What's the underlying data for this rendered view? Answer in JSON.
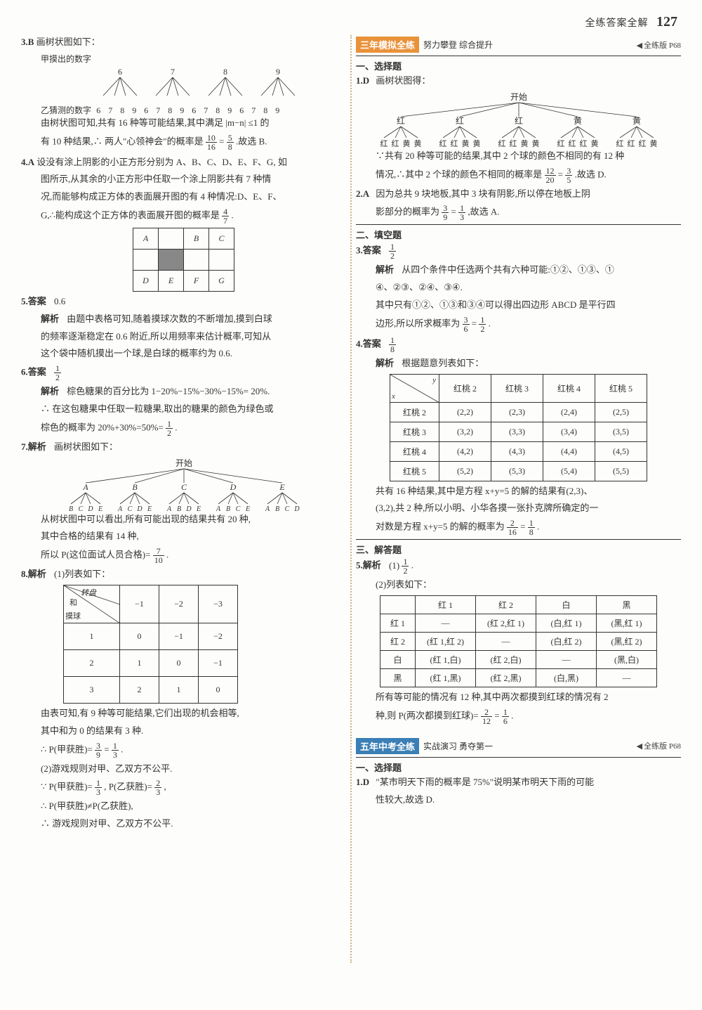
{
  "page_header": {
    "label": "全练答案全解",
    "number": "127"
  },
  "left": {
    "q3": {
      "num": "3.B",
      "lead": "画树状图如下：",
      "top_label": "甲摸出的数字",
      "tops": [
        "6",
        "7",
        "8",
        "9"
      ],
      "bottom_label": "乙猜测的数字",
      "leaves": [
        "6",
        "7",
        "8",
        "9",
        "6",
        "7",
        "8",
        "9",
        "6",
        "7",
        "8",
        "9",
        "6",
        "7",
        "8",
        "9"
      ],
      "line1": "由树状图可知,共有 16 种等可能结果,其中满足 |m−n| ≤1 的",
      "line2a": "有 10 种结果,∴ 两人\"心领神会\"的概率是",
      "line2_fr_n": "10",
      "line2_fr_d": "16",
      "line2_eq": "=",
      "line2_fr2_n": "5",
      "line2_fr2_d": "8",
      "line2b": ".故选 B."
    },
    "q4": {
      "num": "4.A",
      "t1": "设没有涂上阴影的小正方形分别为 A、B、C、D、E、F、G, 如",
      "t2": "图所示,从其余的小正方形中任取一个涂上阴影共有 7 种情",
      "t3": "况,而能够构成正方体的表面展开图的有 4 种情况:D、E、F、",
      "t4a": "G,∴能构成这个正方体的表面展开图的概率是",
      "fr_n": "4",
      "fr_d": "7",
      "t4b": ".",
      "grid": {
        "rows": [
          [
            "A",
            "",
            "B",
            "C"
          ],
          [
            "",
            "",
            "",
            ""
          ],
          [
            "D",
            "E",
            "F",
            "G"
          ]
        ],
        "shaded": [
          [
            1,
            1
          ]
        ]
      }
    },
    "q5": {
      "num": "5.答案",
      "ans": "0.6",
      "jx": "解析",
      "t1": "由题中表格可知,随着摸球次数的不断增加,摸到白球",
      "t2": "的频率逐渐稳定在 0.6 附近,所以用频率来估计概率,可知从",
      "t3": "这个袋中随机摸出一个球,是白球的概率约为 0.6."
    },
    "q6": {
      "num": "6.答案",
      "fr_n": "1",
      "fr_d": "2",
      "jx": "解析",
      "t1": "棕色糖果的百分比为 1−20%−15%−30%−15%= 20%.",
      "t2": "∴ 在这包糖果中任取一粒糖果,取出的糖果的颜色为绿色或",
      "t3a": "棕色的概率为 20%+30%=50%=",
      "fr2_n": "1",
      "fr2_d": "2",
      "t3b": "."
    },
    "q7": {
      "num": "7.解析",
      "lead": "画树状图如下：",
      "start": "开始",
      "mids": [
        "A",
        "B",
        "C",
        "D",
        "E"
      ],
      "leaves": [
        [
          "B",
          "C",
          "D",
          "E"
        ],
        [
          "A",
          "C",
          "D",
          "E"
        ],
        [
          "A",
          "B",
          "D",
          "E"
        ],
        [
          "A",
          "B",
          "C",
          "E"
        ],
        [
          "A",
          "B",
          "C",
          "D"
        ]
      ],
      "t1": "从树状图中可以看出,所有可能出现的结果共有 20 种,",
      "t2": "其中合格的结果有 14 种,",
      "t3a": "所以 P(这位面试人员合格)=",
      "fr_n": "7",
      "fr_d": "10",
      "t3b": "."
    },
    "q8": {
      "num": "8.解析",
      "lead": "(1)列表如下：",
      "table": {
        "corner_labels": {
          "top": "转盘",
          "mid": "和",
          "bottom": "摸球"
        },
        "cols": [
          "−1",
          "−2",
          "−3"
        ],
        "rows": [
          "1",
          "2",
          "3"
        ],
        "cells": [
          [
            "0",
            "−1",
            "−2"
          ],
          [
            "1",
            "0",
            "−1"
          ],
          [
            "2",
            "1",
            "0"
          ]
        ]
      },
      "t1": "由表可知,有 9 种等可能结果,它们出现的机会相等,",
      "t2": "其中和为 0 的结果有 3 种.",
      "t3a": "∴ P(甲获胜)=",
      "fr1_n": "3",
      "fr1_d": "9",
      "eq1": "=",
      "fr2_n": "1",
      "fr2_d": "3",
      "t3b": ".",
      "t4": "(2)游戏规则对甲、乙双方不公平.",
      "t5a": "∵ P(甲获胜)=",
      "fr3_n": "1",
      "fr3_d": "3",
      "t5b": ", P(乙获胜)=",
      "fr4_n": "2",
      "fr4_d": "3",
      "t5c": ",",
      "t6": "∴ P(甲获胜)≠P(乙获胜),",
      "t7": "∴ 游戏规则对甲、乙双方不公平."
    }
  },
  "right": {
    "sec1": {
      "tag": "三年模拟全练",
      "tag_color": "#e9923a",
      "sub": "努力攀登 综合提升",
      "ref": "全练版 P68"
    },
    "h1": "一、选择题",
    "q1d": {
      "num": "1.D",
      "lead": "画树状图得：",
      "start": "开始",
      "mids": [
        "红",
        "红",
        "红",
        "黄",
        "黄"
      ],
      "leaves": [
        [
          "红",
          "红",
          "黄",
          "黄"
        ],
        [
          "红",
          "红",
          "黄",
          "黄"
        ],
        [
          "红",
          "红",
          "黄",
          "黄"
        ],
        [
          "红",
          "红",
          "红",
          "黄"
        ],
        [
          "红",
          "红",
          "红",
          "黄"
        ]
      ],
      "t1": "∵共有 20 种等可能的结果,其中 2 个球的颜色不相同的有 12 种",
      "t2a": "情况,∴其中 2 个球的颜色不相同的概率是",
      "fr1_n": "12",
      "fr1_d": "20",
      "eq": "=",
      "fr2_n": "3",
      "fr2_d": "5",
      "t2b": ".故选 D."
    },
    "q2a": {
      "num": "2.A",
      "t1": "因为总共 9 块地板,其中 3 块有阴影,所以停在地板上阴",
      "t2a": "影部分的概率为",
      "fr_n": "3",
      "fr_d": "9",
      "eq": "=",
      "fr2_n": "1",
      "fr2_d": "3",
      "t2b": ",故选 A."
    },
    "h2": "二、填空题",
    "q3r": {
      "num": "3.答案",
      "fr_n": "1",
      "fr_d": "2",
      "jx": "解析",
      "t1": "从四个条件中任选两个共有六种可能:①②、①③、①",
      "t2": "④、②③、②④、③④.",
      "t3": "其中只有①②、①③和③④可以得出四边形 ABCD 是平行四",
      "t4a": "边形,所以所求概率为",
      "fr2_n": "3",
      "fr2_d": "6",
      "eq": "=",
      "fr3_n": "1",
      "fr3_d": "2",
      "t4b": "."
    },
    "q4r": {
      "num": "4.答案",
      "fr_n": "1",
      "fr_d": "8",
      "jx": "解析",
      "lead": "根据题意列表如下：",
      "table": {
        "corner": {
          "top": "y",
          "bottom": "x"
        },
        "cols": [
          "红桃 2",
          "红桃 3",
          "红桃 4",
          "红桃 5"
        ],
        "rows": [
          "红桃 2",
          "红桃 3",
          "红桃 4",
          "红桃 5"
        ],
        "cells": [
          [
            "(2,2)",
            "(2,3)",
            "(2,4)",
            "(2,5)"
          ],
          [
            "(3,2)",
            "(3,3)",
            "(3,4)",
            "(3,5)"
          ],
          [
            "(4,2)",
            "(4,3)",
            "(4,4)",
            "(4,5)"
          ],
          [
            "(5,2)",
            "(5,3)",
            "(5,4)",
            "(5,5)"
          ]
        ]
      },
      "t1": "共有 16 种结果,其中是方程 x+y=5 的解的结果有(2,3)、",
      "t2": "(3,2),共 2 种,所以小明、小华各摸一张扑克牌所确定的一",
      "t3a": "对数是方程 x+y=5 的解的概率为",
      "fr2_n": "2",
      "fr2_d": "16",
      "eq": "=",
      "fr3_n": "1",
      "fr3_d": "8",
      "t3b": "."
    },
    "h3": "三、解答题",
    "q5r": {
      "num": "5.解析",
      "t0a": "(1)",
      "fr_n": "1",
      "fr_d": "2",
      "t0b": ".",
      "t1": "(2)列表如下：",
      "table": {
        "cols": [
          "红 1",
          "红 2",
          "白",
          "黑"
        ],
        "rows": [
          "红 1",
          "红 2",
          "白",
          "黑"
        ],
        "cells": [
          [
            "—",
            "(红 2,红 1)",
            "(白,红 1)",
            "(黑,红 1)"
          ],
          [
            "(红 1,红 2)",
            "—",
            "(白,红 2)",
            "(黑,红 2)"
          ],
          [
            "(红 1,白)",
            "(红 2,白)",
            "—",
            "(黑,白)"
          ],
          [
            "(红 1,黑)",
            "(红 2,黑)",
            "(白,黑)",
            "—"
          ]
        ]
      },
      "t2": "所有等可能的情况有 12 种,其中两次都摸到红球的情况有 2",
      "t3a": "种,则 P(两次都摸到红球)=",
      "fr2_n": "2",
      "fr2_d": "12",
      "eq": "=",
      "fr3_n": "1",
      "fr3_d": "6",
      "t3b": "."
    },
    "sec2": {
      "tag": "五年中考全练",
      "tag_color": "#3a7fb5",
      "sub": "实战演习 勇夺第一",
      "ref": "全练版 P68"
    },
    "h4": "一、选择题",
    "q1d2": {
      "num": "1.D",
      "t1": "\"某市明天下雨的概率是 75%\"说明某市明天下雨的可能",
      "t2": "性较大,故选 D."
    }
  }
}
